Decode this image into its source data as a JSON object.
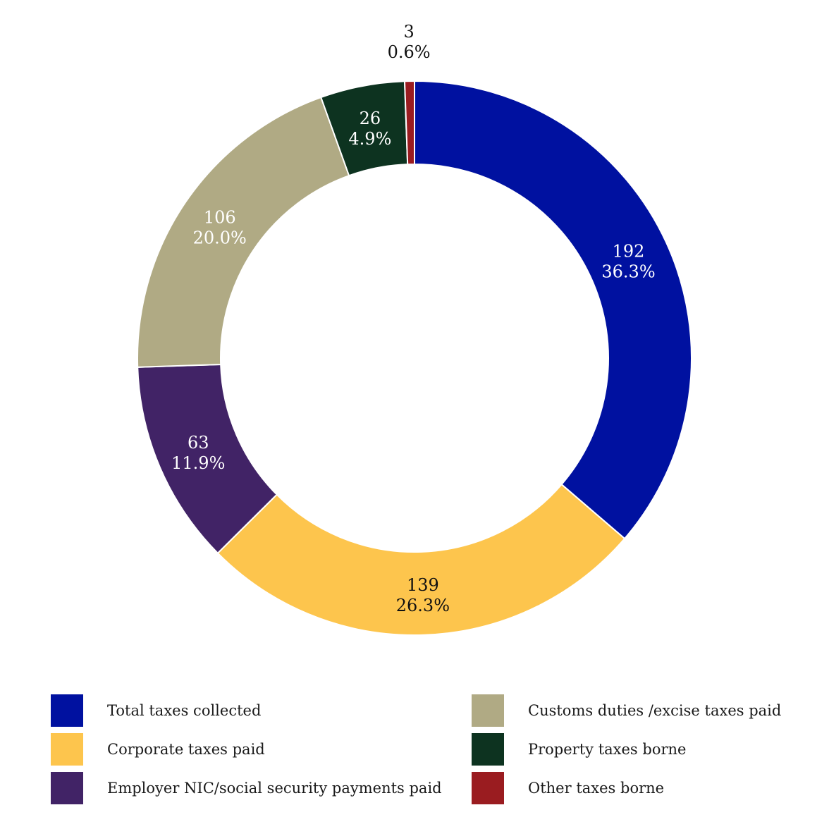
{
  "chart_data": {
    "type": "pie",
    "donut": true,
    "title": "",
    "start_angle_deg": 0,
    "direction": "clockwise",
    "slices": [
      {
        "name": "Total taxes collected",
        "value": 192,
        "percent_label": "36.3%",
        "color": "#0011a0",
        "label_color": "#ffffff"
      },
      {
        "name": "Corporate taxes paid",
        "value": 139,
        "percent_label": "26.3%",
        "color": "#fdc54d",
        "label_color": "#111111"
      },
      {
        "name": "Employer NIC/social security payments paid",
        "value": 63,
        "percent_label": "11.9%",
        "color": "#412366",
        "label_color": "#ffffff"
      },
      {
        "name": "Customs duties /excise taxes paid",
        "value": 106,
        "percent_label": "20.0%",
        "color": "#b0aa84",
        "label_color": "#ffffff"
      },
      {
        "name": "Property taxes borne",
        "value": 26,
        "percent_label": "4.9%",
        "color": "#0d3320",
        "label_color": "#ffffff"
      },
      {
        "name": "Other taxes borne",
        "value": 3,
        "percent_label": "0.6%",
        "color": "#9a1c20",
        "label_color": "#111111"
      }
    ],
    "legend_position": "bottom"
  }
}
